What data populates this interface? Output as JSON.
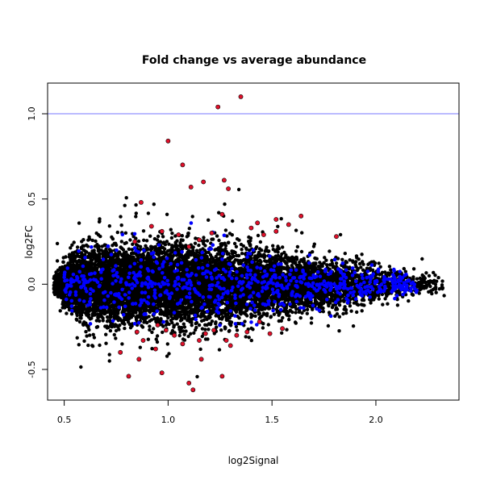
{
  "chart_data": {
    "type": "scatter",
    "title": "Fold change vs average abundance",
    "xlabel": "log2Signal",
    "ylabel": "log2FC",
    "xlim": [
      0.42,
      2.4
    ],
    "ylim": [
      -0.68,
      1.18
    ],
    "x_ticks": [
      0.5,
      1.0,
      1.5,
      2.0
    ],
    "x_tick_labels": [
      "0.5",
      "1.0",
      "1.5",
      "2.0"
    ],
    "y_ticks": [
      -0.5,
      0.0,
      0.5,
      1.0
    ],
    "y_tick_labels": [
      "-0.5",
      "0.0",
      "0.5",
      "1.0"
    ],
    "grid": false,
    "reference_line": {
      "orientation": "horizontal",
      "y": 1.0,
      "color": "#7777ff"
    },
    "colors": {
      "all": "#000000",
      "highlight_blue": "#0000ff",
      "significant_red": "#e0102a",
      "outline": "#000000"
    },
    "series": [
      {
        "role": "all_genes",
        "color": "#000000",
        "approx_count": 9000,
        "distribution": "dense band centred at log2FC 0, spread widest near log2Signal 0.8-1.2 (about ±0.35) and narrowing toward 2.3"
      },
      {
        "role": "highlighted",
        "color": "#0000ff",
        "approx_count": 700,
        "distribution": "scattered within the central band, log2FC about ±0.25"
      },
      {
        "role": "significant",
        "color": "#e0102a",
        "points": [
          [
            1.24,
            1.04
          ],
          [
            1.35,
            1.1
          ],
          [
            1.0,
            0.84
          ],
          [
            1.07,
            0.7
          ],
          [
            1.11,
            0.57
          ],
          [
            1.17,
            0.6
          ],
          [
            1.27,
            0.61
          ],
          [
            1.29,
            0.56
          ],
          [
            0.87,
            0.48
          ],
          [
            1.26,
            0.41
          ],
          [
            1.52,
            0.38
          ],
          [
            1.64,
            0.4
          ],
          [
            1.58,
            0.35
          ],
          [
            1.43,
            0.36
          ],
          [
            1.4,
            0.33
          ],
          [
            1.81,
            0.28
          ],
          [
            0.92,
            0.34
          ],
          [
            0.97,
            0.31
          ],
          [
            1.05,
            0.29
          ],
          [
            1.21,
            0.3
          ],
          [
            1.15,
            0.26
          ],
          [
            1.46,
            0.29
          ],
          [
            1.52,
            0.31
          ],
          [
            0.84,
            0.25
          ],
          [
            1.1,
            0.22
          ],
          [
            0.95,
            -0.24
          ],
          [
            0.85,
            -0.28
          ],
          [
            0.88,
            -0.33
          ],
          [
            0.99,
            -0.27
          ],
          [
            1.03,
            -0.3
          ],
          [
            1.15,
            -0.33
          ],
          [
            1.18,
            -0.29
          ],
          [
            1.22,
            -0.27
          ],
          [
            1.3,
            -0.36
          ],
          [
            1.38,
            -0.28
          ],
          [
            1.49,
            -0.29
          ],
          [
            1.55,
            -0.26
          ],
          [
            0.77,
            -0.4
          ],
          [
            0.86,
            -0.44
          ],
          [
            1.16,
            -0.44
          ],
          [
            0.81,
            -0.54
          ],
          [
            0.97,
            -0.52
          ],
          [
            1.26,
            -0.54
          ],
          [
            1.1,
            -0.58
          ],
          [
            1.12,
            -0.62
          ],
          [
            1.07,
            -0.35
          ],
          [
            1.28,
            -0.33
          ],
          [
            0.94,
            -0.38
          ],
          [
            1.33,
            -0.3
          ],
          [
            1.44,
            -0.22
          ]
        ]
      }
    ]
  }
}
